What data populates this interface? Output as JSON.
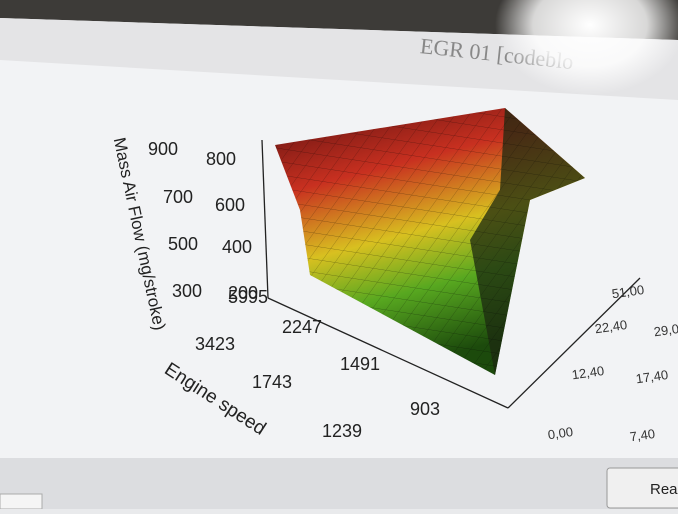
{
  "window": {
    "title": "EGR 01 [codeblo"
  },
  "plot": {
    "z_axis": {
      "label": "Mass Air Flow (mg/stroke)",
      "ticks": [
        "900",
        "800",
        "700",
        "600",
        "500",
        "400",
        "300",
        "200"
      ]
    },
    "engine_speed_axis": {
      "label": "Engine speed",
      "ticks": [
        "5995",
        "3423",
        "2247",
        "1743",
        "1491",
        "1239",
        "903"
      ]
    },
    "third_axis": {
      "ticks": [
        "0,00",
        "7,40",
        "12,40",
        "17,40",
        "22,40",
        "29,0",
        "51,00"
      ]
    }
  },
  "buttons": [
    "Rea"
  ]
}
